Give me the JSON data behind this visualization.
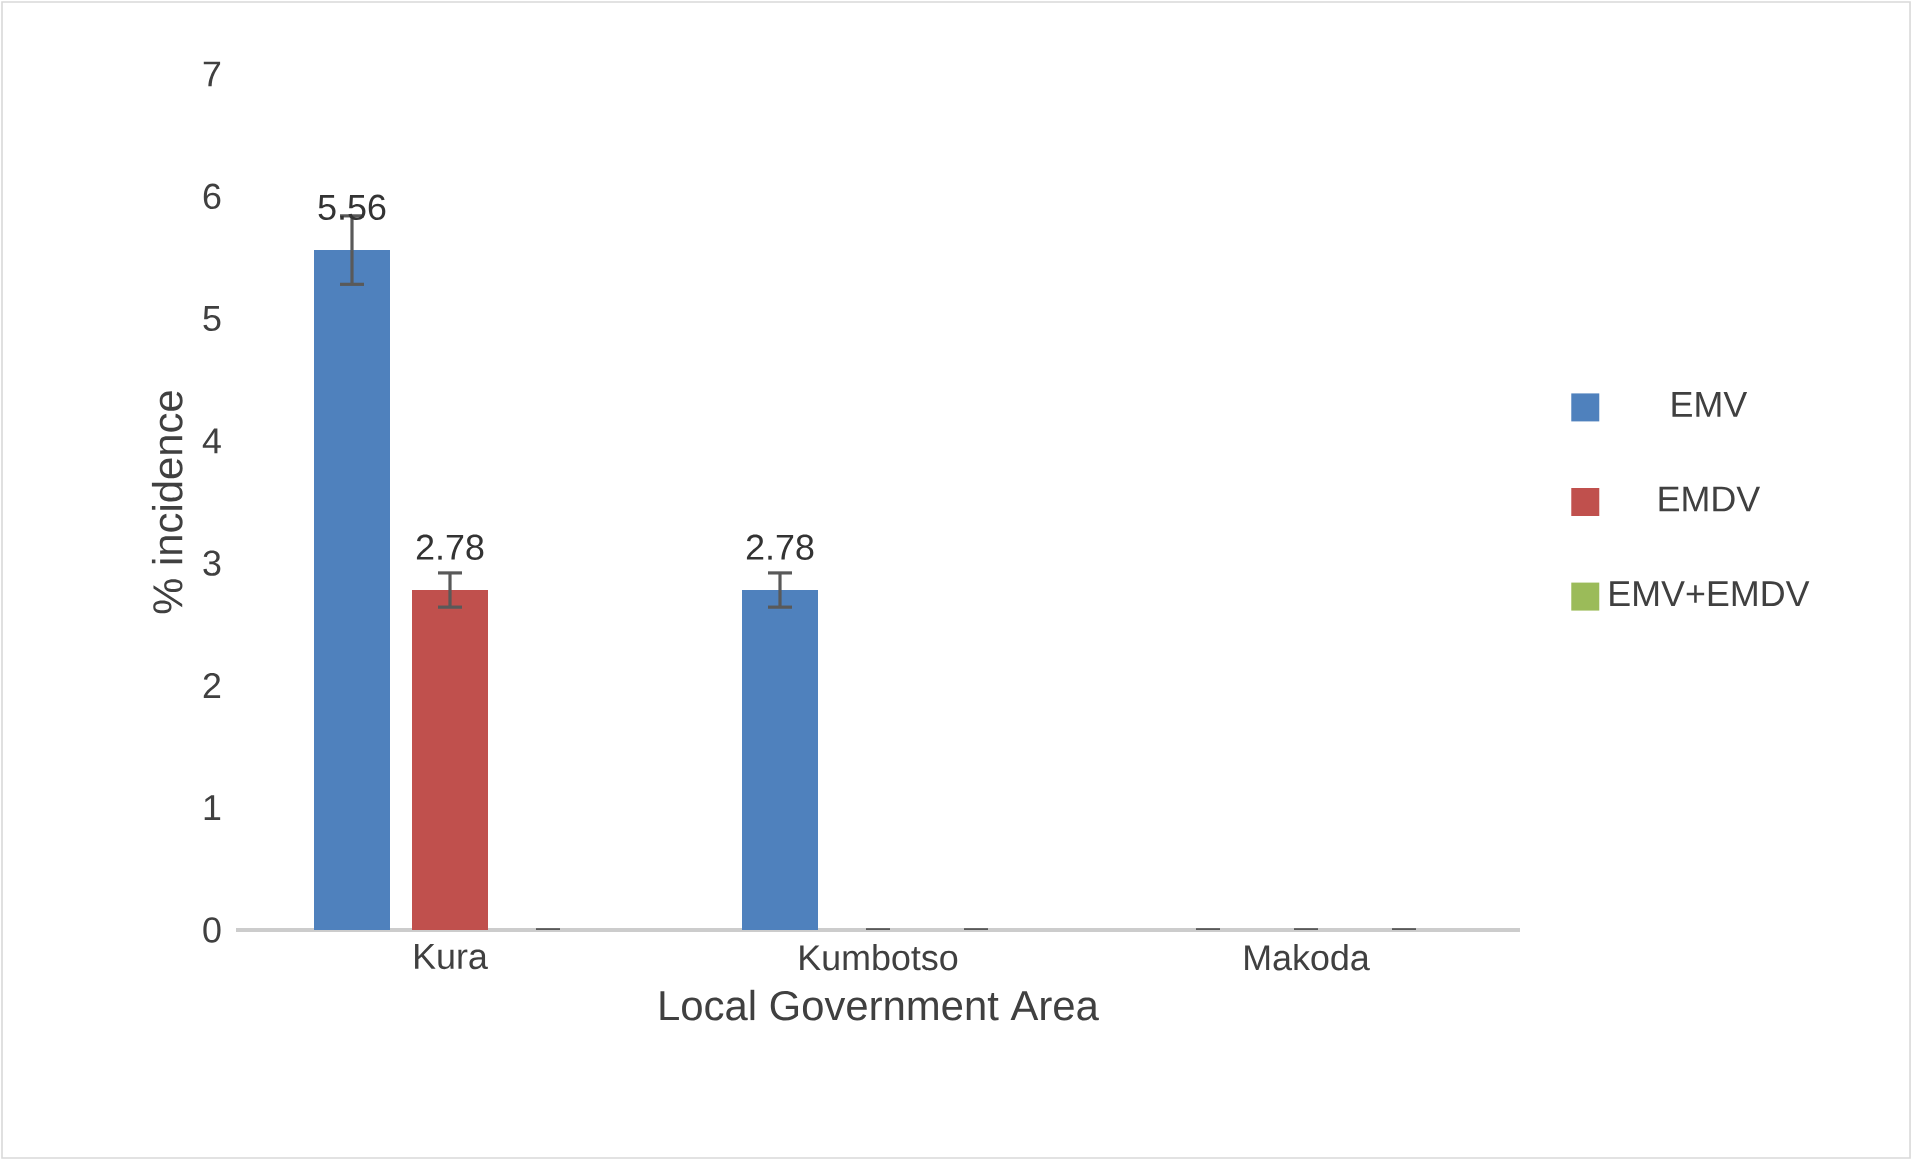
{
  "chart_data": {
    "type": "bar",
    "xlabel": "Local Government Area",
    "ylabel": "% incidence",
    "categories": [
      "Kura",
      "Kumbotso",
      "Makoda"
    ],
    "series": [
      {
        "name": "EMV",
        "color": "#4f81bd",
        "values": [
          5.56,
          2.78,
          0
        ],
        "errors": [
          0.28,
          0.14,
          null
        ],
        "value_labels": [
          "5.56",
          "2.78",
          null
        ]
      },
      {
        "name": "EMDV",
        "color": "#c0504d",
        "values": [
          2.78,
          0,
          0
        ],
        "errors": [
          0.14,
          null,
          null
        ],
        "value_labels": [
          "2.78",
          null,
          null
        ]
      },
      {
        "name": "EMV+EMDV",
        "color": "#9bbb59",
        "values": [
          0,
          0,
          0
        ],
        "errors": [
          null,
          null,
          null
        ],
        "value_labels": [
          null,
          null,
          null
        ]
      }
    ],
    "ylim": [
      0,
      7
    ],
    "yticks": [
      0,
      1,
      2,
      3,
      4,
      5,
      6,
      7
    ],
    "grid": false,
    "legend": "right"
  }
}
